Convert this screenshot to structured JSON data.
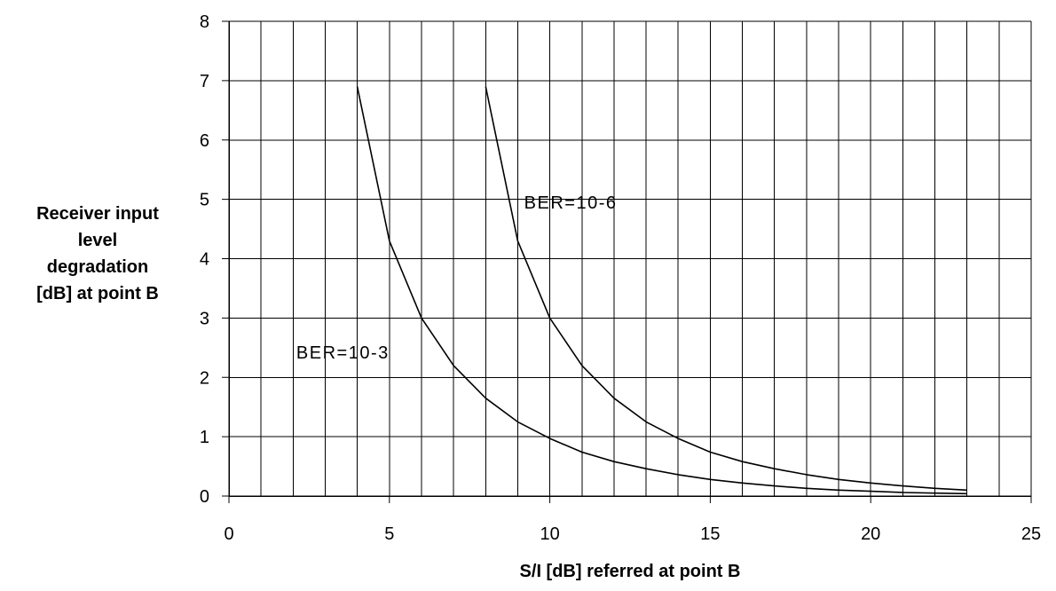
{
  "chart_data": {
    "type": "line",
    "title": "",
    "xlabel": "S/I [dB] referred at point B",
    "ylabel_lines": [
      "Receiver input",
      "level",
      "degradation",
      "[dB] at point B"
    ],
    "xlim": [
      0,
      25
    ],
    "ylim": [
      0,
      8
    ],
    "x_ticks": [
      0,
      5,
      10,
      15,
      20,
      25
    ],
    "y_ticks": [
      0,
      1,
      2,
      3,
      4,
      5,
      6,
      7,
      8
    ],
    "x_grid_step": 1,
    "y_grid_step": 1,
    "grid": true,
    "legend": "none",
    "series": [
      {
        "name": "BER=10-3",
        "x": [
          4,
          5,
          6,
          7,
          8,
          9,
          10,
          11,
          12,
          13,
          14,
          15,
          16,
          17,
          18,
          19,
          20,
          21,
          22,
          23
        ],
        "y": [
          6.9,
          4.3,
          3.0,
          2.2,
          1.65,
          1.25,
          0.97,
          0.74,
          0.58,
          0.46,
          0.36,
          0.28,
          0.22,
          0.17,
          0.13,
          0.1,
          0.08,
          0.06,
          0.05,
          0.04
        ]
      },
      {
        "name": "BER=10-6",
        "x": [
          8,
          9,
          10,
          11,
          12,
          13,
          14,
          15,
          16,
          17,
          18,
          19,
          20,
          21,
          22,
          23
        ],
        "y": [
          6.9,
          4.3,
          3.0,
          2.2,
          1.65,
          1.25,
          0.97,
          0.74,
          0.58,
          0.46,
          0.36,
          0.28,
          0.22,
          0.17,
          0.13,
          0.1
        ]
      }
    ],
    "annotations": [
      {
        "text": "BER=10-3",
        "x": 2.1,
        "y": 2.42
      },
      {
        "text": "BER=10-6",
        "x": 9.2,
        "y": 4.95
      }
    ],
    "colors": {
      "line": "#000000",
      "grid": "#000000",
      "background": "#ffffff"
    }
  }
}
